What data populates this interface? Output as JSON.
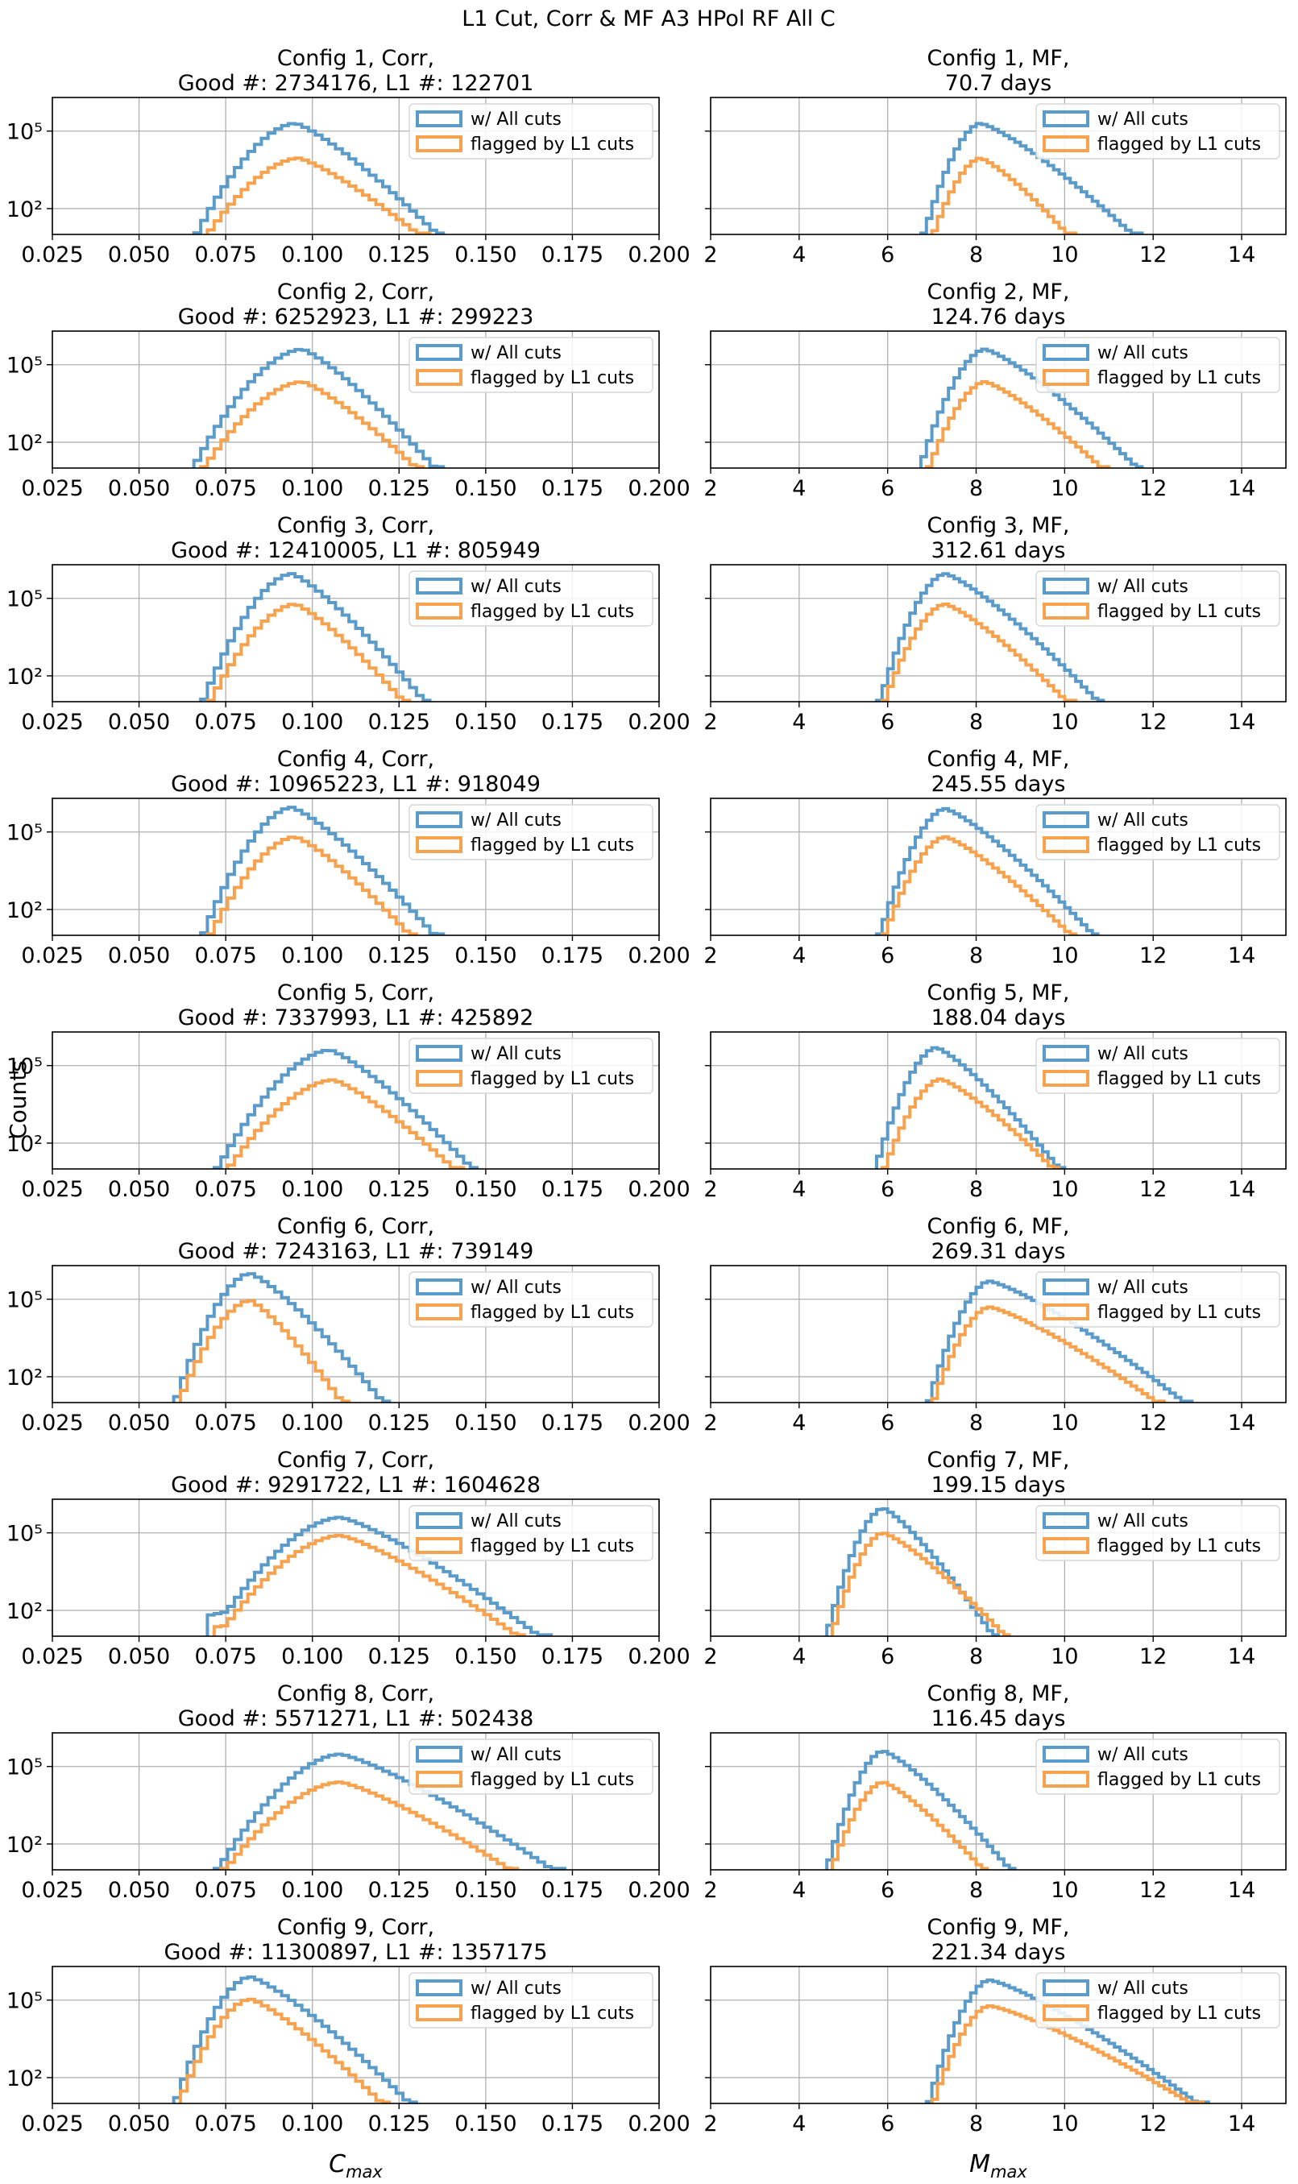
{
  "figure": {
    "suptitle": "L1 Cut, Corr & MF A3 HPol RF All C",
    "ylabel": "Counts",
    "colors": {
      "all_cuts": "#5b9bc9",
      "l1_flagged": "#f7a24f",
      "grid": "#b0b0b0",
      "axis": "#000000"
    }
  },
  "chart_data": {
    "type": "step-histogram",
    "yscale": "log",
    "ylim": [
      10,
      2000000
    ],
    "yticks": [
      {
        "v": 100,
        "label": "10²"
      },
      {
        "v": 100000,
        "label": "10⁵"
      }
    ],
    "legend": {
      "position": "top-right",
      "entries": [
        "w/ All cuts",
        "flagged by L1 cuts"
      ]
    },
    "grid": true,
    "corr_axis": {
      "xlabel": "C_max",
      "xlim": [
        0.025,
        0.2
      ],
      "xticks": [
        "0.025",
        "0.050",
        "0.075",
        "0.100",
        "0.125",
        "0.150",
        "0.175",
        "0.200"
      ]
    },
    "mf_axis": {
      "xlabel": "M_max",
      "xlim": [
        2,
        15
      ],
      "xticks": [
        "2",
        "4",
        "6",
        "8",
        "10",
        "12",
        "14"
      ]
    },
    "configs": [
      {
        "config": 1,
        "corr": {
          "title": "Config 1, Corr,",
          "subtitle": "Good #: 2734176, L1 #: 122701",
          "all": {
            "xmin": 0.066,
            "peak": 0.095,
            "peakCount": 200000,
            "xmax": 0.138,
            "shoulder": 18
          },
          "l1": {
            "xmin": 0.069,
            "peak": 0.096,
            "peakCount": 9000,
            "xmax": 0.133
          }
        },
        "mf": {
          "title": "Config 1, MF,",
          "subtitle": "70.7 days",
          "all": {
            "xmin": 6.8,
            "peak": 8.1,
            "peakCount": 200000,
            "xmax": 11.7
          },
          "l1": {
            "xmin": 7.0,
            "peak": 8.1,
            "peakCount": 9000,
            "xmax": 10.2
          }
        }
      },
      {
        "config": 2,
        "corr": {
          "title": "Config 2, Corr,",
          "subtitle": "Good #: 6252923, L1 #: 299223",
          "all": {
            "xmin": 0.065,
            "peak": 0.097,
            "peakCount": 400000,
            "xmax": 0.137
          },
          "l1": {
            "xmin": 0.068,
            "peak": 0.097,
            "peakCount": 22000,
            "xmax": 0.132
          }
        },
        "mf": {
          "title": "Config 2, MF,",
          "subtitle": "124.76 days",
          "all": {
            "xmin": 6.7,
            "peak": 8.2,
            "peakCount": 400000,
            "xmax": 11.8
          },
          "l1": {
            "xmin": 6.9,
            "peak": 8.2,
            "peakCount": 22000,
            "xmax": 11.0
          }
        }
      },
      {
        "config": 3,
        "corr": {
          "title": "Config 3, Corr,",
          "subtitle": "Good #: 12410005, L1 #: 805949",
          "all": {
            "xmin": 0.068,
            "peak": 0.094,
            "peakCount": 900000,
            "xmax": 0.134
          },
          "l1": {
            "xmin": 0.07,
            "peak": 0.095,
            "peakCount": 60000,
            "xmax": 0.128
          }
        },
        "mf": {
          "title": "Config 3, MF,",
          "subtitle": "312.61 days",
          "all": {
            "xmin": 5.8,
            "peak": 7.3,
            "peakCount": 900000,
            "xmax": 10.9
          },
          "l1": {
            "xmin": 5.9,
            "peak": 7.3,
            "peakCount": 60000,
            "xmax": 10.2
          }
        }
      },
      {
        "config": 4,
        "corr": {
          "title": "Config 4, Corr,",
          "subtitle": "Good #: 10965223, L1 #: 918049",
          "all": {
            "xmin": 0.068,
            "peak": 0.094,
            "peakCount": 900000,
            "xmax": 0.137
          },
          "l1": {
            "xmin": 0.07,
            "peak": 0.095,
            "peakCount": 65000,
            "xmax": 0.13
          }
        },
        "mf": {
          "title": "Config 4, MF,",
          "subtitle": "245.55 days",
          "all": {
            "xmin": 5.8,
            "peak": 7.3,
            "peakCount": 800000,
            "xmax": 10.8
          },
          "l1": {
            "xmin": 5.9,
            "peak": 7.3,
            "peakCount": 65000,
            "xmax": 10.3
          }
        }
      },
      {
        "config": 5,
        "corr": {
          "title": "Config 5, Corr,",
          "subtitle": "Good #: 7337993, L1 #: 425892",
          "all": {
            "xmin": 0.072,
            "peak": 0.105,
            "peakCount": 400000,
            "xmax": 0.148
          },
          "l1": {
            "xmin": 0.075,
            "peak": 0.106,
            "peakCount": 28000,
            "xmax": 0.143
          }
        },
        "mf": {
          "title": "Config 5, MF,",
          "subtitle": "188.04 days",
          "all": {
            "xmin": 5.7,
            "peak": 7.1,
            "peakCount": 500000,
            "xmax": 10.0
          },
          "l1": {
            "xmin": 5.9,
            "peak": 7.2,
            "peakCount": 30000,
            "xmax": 9.9
          }
        }
      },
      {
        "config": 6,
        "corr": {
          "title": "Config 6, Corr,",
          "subtitle": "Good #: 7243163, L1 #: 739149",
          "all": {
            "xmin": 0.06,
            "peak": 0.082,
            "peakCount": 1000000,
            "xmax": 0.122
          },
          "l1": {
            "xmin": 0.061,
            "peak": 0.082,
            "peakCount": 90000,
            "xmax": 0.11
          }
        },
        "mf": {
          "title": "Config 6, MF,",
          "subtitle": "269.31 days",
          "all": {
            "xmin": 6.9,
            "peak": 8.3,
            "peakCount": 500000,
            "xmax": 12.9
          },
          "l1": {
            "xmin": 7.0,
            "peak": 8.3,
            "peakCount": 50000,
            "xmax": 12.3
          }
        }
      },
      {
        "config": 7,
        "corr": {
          "title": "Config 7, Corr,",
          "subtitle": "Good #: 9291722, L1 #: 1604628",
          "all": {
            "xmin": 0.07,
            "peak": 0.108,
            "peakCount": 400000,
            "xmax": 0.168,
            "shoulder": 600
          },
          "l1": {
            "xmin": 0.072,
            "peak": 0.108,
            "peakCount": 80000,
            "xmax": 0.162,
            "shoulder": 120
          }
        },
        "mf": {
          "title": "Config 7, MF,",
          "subtitle": "199.15 days",
          "all": {
            "xmin": 4.6,
            "peak": 5.9,
            "peakCount": 900000,
            "xmax": 8.5
          },
          "l1": {
            "xmin": 4.7,
            "peak": 5.9,
            "peakCount": 100000,
            "xmax": 8.8
          }
        }
      },
      {
        "config": 8,
        "corr": {
          "title": "Config 8, Corr,",
          "subtitle": "Good #: 5571271, L1 #: 502438",
          "all": {
            "xmin": 0.072,
            "peak": 0.108,
            "peakCount": 300000,
            "xmax": 0.172
          },
          "l1": {
            "xmin": 0.074,
            "peak": 0.108,
            "peakCount": 25000,
            "xmax": 0.16
          }
        },
        "mf": {
          "title": "Config 8, MF,",
          "subtitle": "116.45 days",
          "all": {
            "xmin": 4.6,
            "peak": 5.9,
            "peakCount": 400000,
            "xmax": 8.9
          },
          "l1": {
            "xmin": 4.7,
            "peak": 5.9,
            "peakCount": 25000,
            "xmax": 8.3
          }
        }
      },
      {
        "config": 9,
        "corr": {
          "title": "Config 9, Corr,",
          "subtitle": "Good #: 11300897, L1 #: 1357175",
          "all": {
            "xmin": 0.06,
            "peak": 0.082,
            "peakCount": 800000,
            "xmax": 0.13
          },
          "l1": {
            "xmin": 0.061,
            "peak": 0.082,
            "peakCount": 110000,
            "xmax": 0.122
          }
        },
        "mf": {
          "title": "Config 9, MF,",
          "subtitle": "221.34 days",
          "all": {
            "xmin": 6.9,
            "peak": 8.3,
            "peakCount": 600000,
            "xmax": 13.2
          },
          "l1": {
            "xmin": 7.0,
            "peak": 8.3,
            "peakCount": 60000,
            "xmax": 13.1
          }
        }
      }
    ]
  }
}
